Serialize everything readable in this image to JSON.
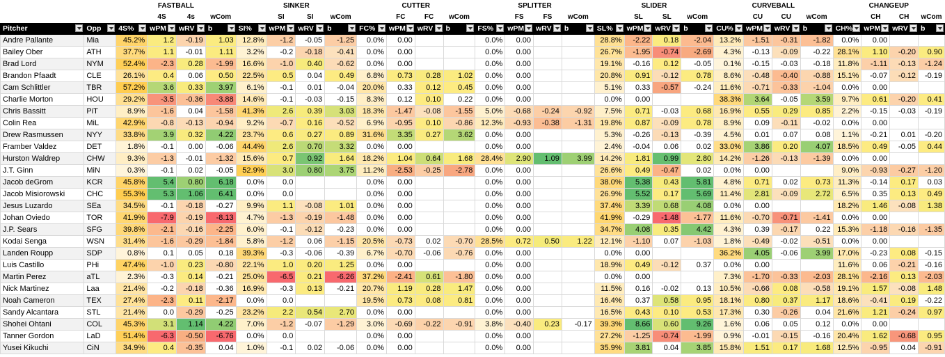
{
  "groups": [
    "FASTBALL",
    "SINKER",
    "CUTTER",
    "SPLITTER",
    "SLIDER",
    "CURVEBALL",
    "CHANGEUP"
  ],
  "subheaders": [
    [
      "4S",
      "4s",
      "wCom"
    ],
    [
      "SI",
      "SI",
      "wCom"
    ],
    [
      "FC",
      "FC",
      "wCom"
    ],
    [
      "FS",
      "FS",
      "wCom"
    ],
    [
      "SL",
      "SL",
      "wCom"
    ],
    [
      "CU",
      "CU",
      "wCom"
    ],
    [
      "CH",
      "CH",
      "wCom"
    ]
  ],
  "headers": [
    "Pitcher",
    "Opp",
    "4S%",
    "wPM",
    "wRV",
    "b",
    "SI%",
    "wPM",
    "wRV",
    "b",
    "FC%",
    "wPM",
    "wRV",
    "b",
    "FS%",
    "wPM",
    "wRV",
    "b",
    "SL%",
    "wPM",
    "wRV",
    "b",
    "CU%",
    "wPM",
    "wRV",
    "b",
    "CH%",
    "wPM",
    "wRV",
    "b"
  ],
  "rows": [
    [
      "Andre Pallante",
      "Mia",
      "45.2%",
      "1.2",
      "-0.19",
      "1.03",
      "12.8%",
      "-1.2",
      "-0.05",
      "-1.25",
      "0.0%",
      "0.00",
      "",
      "",
      "0.0%",
      "0.00",
      "",
      "",
      "28.8%",
      "-2.22",
      "0.18",
      "-2.04",
      "13.2%",
      "-1.51",
      "-0.31",
      "-1.82",
      "0.0%",
      "0.00",
      "",
      ""
    ],
    [
      "Bailey Ober",
      "ATH",
      "37.7%",
      "1.1",
      "-0.01",
      "1.11",
      "3.2%",
      "-0.2",
      "-0.18",
      "-0.41",
      "0.0%",
      "0.00",
      "",
      "",
      "0.0%",
      "0.00",
      "",
      "",
      "26.7%",
      "-1.95",
      "-0.74",
      "-2.69",
      "4.3%",
      "-0.13",
      "-0.09",
      "-0.22",
      "28.1%",
      "1.10",
      "-0.20",
      "0.90"
    ],
    [
      "Brad Lord",
      "NYM",
      "52.4%",
      "-2.3",
      "0.28",
      "-1.99",
      "16.6%",
      "-1.0",
      "0.40",
      "-0.62",
      "0.0%",
      "0.00",
      "",
      "",
      "0.0%",
      "0.00",
      "",
      "",
      "19.1%",
      "-0.16",
      "0.12",
      "-0.05",
      "0.1%",
      "-0.15",
      "-0.03",
      "-0.18",
      "11.8%",
      "-1.11",
      "-0.13",
      "-1.24"
    ],
    [
      "Brandon Pfaadt",
      "CLE",
      "26.1%",
      "0.4",
      "0.06",
      "0.50",
      "22.5%",
      "0.5",
      "0.04",
      "0.49",
      "6.8%",
      "0.73",
      "0.28",
      "1.02",
      "0.0%",
      "0.00",
      "",
      "",
      "20.8%",
      "0.91",
      "-0.12",
      "0.78",
      "8.6%",
      "-0.48",
      "-0.40",
      "-0.88",
      "15.1%",
      "-0.07",
      "-0.12",
      "-0.19"
    ],
    [
      "Cam Schlittler",
      "TBR",
      "57.2%",
      "3.6",
      "0.33",
      "3.97",
      "6.1%",
      "-0.1",
      "0.01",
      "-0.04",
      "20.0%",
      "0.33",
      "0.12",
      "0.45",
      "0.0%",
      "0.00",
      "",
      "",
      "5.1%",
      "0.33",
      "-0.57",
      "-0.24",
      "11.6%",
      "-0.71",
      "-0.33",
      "-1.04",
      "0.0%",
      "0.00",
      "",
      ""
    ],
    [
      "Charlie Morton",
      "HOU",
      "29.2%",
      "-3.5",
      "-0.36",
      "-3.88",
      "14.6%",
      "-0.1",
      "-0.03",
      "-0.15",
      "8.3%",
      "0.12",
      "0.10",
      "0.22",
      "0.0%",
      "0.00",
      "",
      "",
      "0.0%",
      "0.00",
      "",
      "",
      "38.3%",
      "3.64",
      "-0.05",
      "3.59",
      "9.7%",
      "0.61",
      "-0.20",
      "0.41"
    ],
    [
      "Chris Bassitt",
      "PiT",
      "8.9%",
      "-1.6",
      "0.04",
      "-1.58",
      "41.3%",
      "2.6",
      "0.39",
      "3.03",
      "18.3%",
      "-1.47",
      "-0.08",
      "-1.55",
      "5.0%",
      "-0.68",
      "-0.24",
      "-0.92",
      "7.5%",
      "0.71",
      "-0.03",
      "0.68",
      "16.9%",
      "0.55",
      "0.29",
      "0.85",
      "2.2%",
      "-0.15",
      "-0.03",
      "-0.19"
    ],
    [
      "Colin Rea",
      "MiL",
      "42.9%",
      "-0.8",
      "-0.13",
      "-0.94",
      "9.2%",
      "-0.7",
      "0.16",
      "-0.52",
      "6.9%",
      "-0.95",
      "0.10",
      "-0.86",
      "12.3%",
      "-0.93",
      "-0.38",
      "-1.31",
      "19.8%",
      "0.87",
      "-0.09",
      "0.78",
      "8.9%",
      "0.09",
      "-0.11",
      "-0.02",
      "0.0%",
      "0.00",
      "",
      ""
    ],
    [
      "Drew Rasmussen",
      "NYY",
      "33.8%",
      "3.9",
      "0.32",
      "4.22",
      "23.7%",
      "0.6",
      "0.27",
      "0.89",
      "31.6%",
      "3.35",
      "0.27",
      "3.62",
      "0.0%",
      "0.00",
      "",
      "",
      "5.3%",
      "-0.26",
      "-0.13",
      "-0.39",
      "4.5%",
      "0.01",
      "0.07",
      "0.08",
      "1.1%",
      "-0.21",
      "0.01",
      "-0.20"
    ],
    [
      "Framber Valdez",
      "DET",
      "1.8%",
      "-0.1",
      "0.00",
      "-0.06",
      "44.4%",
      "2.6",
      "0.70",
      "3.32",
      "0.0%",
      "0.00",
      "",
      "",
      "0.0%",
      "0.00",
      "",
      "",
      "2.4%",
      "-0.04",
      "0.06",
      "0.02",
      "33.0%",
      "3.86",
      "0.20",
      "4.07",
      "18.5%",
      "0.49",
      "-0.05",
      "0.44"
    ],
    [
      "Hurston Waldrep",
      "CHW",
      "9.3%",
      "-1.3",
      "-0.01",
      "-1.32",
      "15.6%",
      "0.7",
      "0.92",
      "1.64",
      "18.2%",
      "1.04",
      "0.64",
      "1.68",
      "28.4%",
      "2.90",
      "1.09",
      "3.99",
      "14.2%",
      "1.81",
      "0.99",
      "2.80",
      "14.2%",
      "-1.26",
      "-0.13",
      "-1.39",
      "0.0%",
      "0.00",
      "",
      ""
    ],
    [
      "J.T. Ginn",
      "MiN",
      "0.3%",
      "-0.1",
      "0.02",
      "-0.05",
      "52.9%",
      "3.0",
      "0.80",
      "3.75",
      "11.2%",
      "-2.53",
      "-0.25",
      "-2.78",
      "0.0%",
      "0.00",
      "",
      "",
      "26.6%",
      "0.49",
      "-0.47",
      "0.02",
      "0.0%",
      "0.00",
      "",
      "",
      "9.0%",
      "-0.93",
      "-0.27",
      "-1.20"
    ],
    [
      "Jacob deGrom",
      "KCR",
      "45.8%",
      "5.4",
      "0.80",
      "6.18",
      "0.0%",
      "0.0",
      "",
      "",
      "0.0%",
      "0.00",
      "",
      "",
      "0.0%",
      "0.00",
      "",
      "",
      "38.0%",
      "5.38",
      "0.43",
      "5.81",
      "4.8%",
      "0.71",
      "0.02",
      "0.73",
      "11.3%",
      "-0.14",
      "0.17",
      "0.03"
    ],
    [
      "Jacob Misiorowski",
      "CHC",
      "55.3%",
      "5.3",
      "1.06",
      "6.41",
      "0.0%",
      "0.0",
      "",
      "",
      "0.0%",
      "0.00",
      "",
      "",
      "0.0%",
      "0.00",
      "",
      "",
      "26.9%",
      "5.52",
      "0.17",
      "5.69",
      "11.4%",
      "2.81",
      "-0.09",
      "2.72",
      "6.5%",
      "0.35",
      "0.13",
      "0.49"
    ],
    [
      "Jesus Luzardo",
      "SEa",
      "34.5%",
      "-0.1",
      "-0.18",
      "-0.27",
      "9.9%",
      "1.1",
      "-0.08",
      "1.01",
      "0.0%",
      "0.00",
      "",
      "",
      "0.0%",
      "0.00",
      "",
      "",
      "37.4%",
      "3.39",
      "0.68",
      "4.08",
      "0.0%",
      "0.00",
      "",
      "",
      "18.2%",
      "1.46",
      "-0.08",
      "1.38"
    ],
    [
      "Johan Oviedo",
      "TOR",
      "41.9%",
      "-7.9",
      "-0.19",
      "-8.13",
      "4.7%",
      "-1.3",
      "-0.19",
      "-1.48",
      "0.0%",
      "0.00",
      "",
      "",
      "0.0%",
      "0.00",
      "",
      "",
      "41.9%",
      "-0.29",
      "-1.48",
      "-1.77",
      "11.6%",
      "-0.70",
      "-0.71",
      "-1.41",
      "0.0%",
      "0.00",
      "",
      ""
    ],
    [
      "J.P. Sears",
      "SFG",
      "39.8%",
      "-2.1",
      "-0.16",
      "-2.25",
      "6.0%",
      "-0.1",
      "-0.12",
      "-0.23",
      "0.0%",
      "0.00",
      "",
      "",
      "0.0%",
      "0.00",
      "",
      "",
      "34.7%",
      "4.08",
      "0.35",
      "4.42",
      "4.3%",
      "0.39",
      "-0.17",
      "0.22",
      "15.3%",
      "-1.18",
      "-0.16",
      "-1.35"
    ],
    [
      "Kodai Senga",
      "WSN",
      "31.4%",
      "-1.6",
      "-0.29",
      "-1.84",
      "5.8%",
      "-1.2",
      "0.06",
      "-1.15",
      "20.5%",
      "-0.73",
      "0.02",
      "-0.70",
      "28.5%",
      "0.72",
      "0.50",
      "1.22",
      "12.1%",
      "-1.10",
      "0.07",
      "-1.03",
      "1.8%",
      "-0.49",
      "-0.02",
      "-0.51",
      "0.0%",
      "0.00",
      "",
      ""
    ],
    [
      "Landen Roupp",
      "SDP",
      "0.8%",
      "0.1",
      "0.05",
      "0.18",
      "39.3%",
      "-0.3",
      "-0.06",
      "-0.39",
      "6.7%",
      "-0.70",
      "-0.06",
      "-0.76",
      "0.0%",
      "0.00",
      "",
      "",
      "0.0%",
      "0.00",
      "",
      "",
      "36.2%",
      "4.05",
      "-0.06",
      "3.99",
      "17.0%",
      "-0.23",
      "0.08",
      "-0.15"
    ],
    [
      "Luis Castillo",
      "PHi",
      "47.4%",
      "-1.0",
      "0.23",
      "-0.80",
      "22.1%",
      "1.0",
      "0.20",
      "1.25",
      "0.0%",
      "0.00",
      "",
      "",
      "0.0%",
      "0.00",
      "",
      "",
      "18.9%",
      "0.49",
      "-0.12",
      "0.37",
      "0.0%",
      "0.00",
      "",
      "",
      "11.6%",
      "0.06",
      "-0.21",
      "-0.16"
    ],
    [
      "Martin Perez",
      "aTL",
      "2.3%",
      "-0.3",
      "0.14",
      "-0.21",
      "25.0%",
      "-6.5",
      "0.21",
      "-6.26",
      "37.2%",
      "-2.41",
      "0.61",
      "-1.80",
      "0.0%",
      "0.00",
      "",
      "",
      "0.0%",
      "0.00",
      "",
      "",
      "7.3%",
      "-1.70",
      "-0.33",
      "-2.03",
      "28.1%",
      "-2.16",
      "0.13",
      "-2.03"
    ],
    [
      "Nick Martinez",
      "Laa",
      "21.4%",
      "-0.2",
      "-0.18",
      "-0.36",
      "16.9%",
      "-0.3",
      "0.13",
      "-0.21",
      "20.7%",
      "1.19",
      "0.28",
      "1.47",
      "0.0%",
      "0.00",
      "",
      "",
      "11.5%",
      "0.16",
      "-0.02",
      "0.13",
      "10.5%",
      "-0.66",
      "0.08",
      "-0.58",
      "19.1%",
      "1.57",
      "-0.08",
      "1.48"
    ],
    [
      "Noah Cameron",
      "TEX",
      "27.4%",
      "-2.3",
      "0.11",
      "-2.17",
      "0.0%",
      "0.0",
      "",
      "",
      "19.5%",
      "0.73",
      "0.08",
      "0.81",
      "0.0%",
      "0.00",
      "",
      "",
      "16.4%",
      "0.37",
      "0.58",
      "0.95",
      "18.1%",
      "0.80",
      "0.37",
      "1.17",
      "18.6%",
      "-0.41",
      "0.19",
      "-0.22"
    ],
    [
      "Sandy Alcantara",
      "STL",
      "21.4%",
      "0.0",
      "-0.29",
      "-0.25",
      "23.2%",
      "2.2",
      "0.54",
      "2.70",
      "0.0%",
      "0.00",
      "",
      "",
      "0.0%",
      "0.00",
      "",
      "",
      "16.5%",
      "0.43",
      "0.10",
      "0.53",
      "17.3%",
      "0.30",
      "-0.26",
      "0.04",
      "21.6%",
      "1.21",
      "-0.24",
      "0.97"
    ],
    [
      "Shohei Ohtani",
      "COL",
      "45.3%",
      "3.1",
      "1.14",
      "4.22",
      "7.0%",
      "-1.2",
      "-0.07",
      "-1.29",
      "3.0%",
      "-0.69",
      "-0.22",
      "-0.91",
      "3.8%",
      "-0.40",
      "0.23",
      "-0.17",
      "39.3%",
      "8.66",
      "0.60",
      "9.26",
      "1.6%",
      "0.06",
      "0.05",
      "0.12",
      "0.0%",
      "0.00",
      "",
      ""
    ],
    [
      "Tanner Gordon",
      "LaD",
      "51.4%",
      "-6.3",
      "-0.50",
      "-6.76",
      "0.0%",
      "0.0",
      "",
      "",
      "0.0%",
      "0.00",
      "",
      "",
      "0.0%",
      "0.00",
      "",
      "",
      "27.2%",
      "-1.25",
      "-0.74",
      "-1.99",
      "0.9%",
      "-0.01",
      "-0.15",
      "-0.16",
      "20.4%",
      "1.62",
      "-0.68",
      "0.95"
    ],
    [
      "Yusei Kikuchi",
      "CiN",
      "34.9%",
      "0.4",
      "-0.35",
      "0.04",
      "1.0%",
      "-0.1",
      "0.02",
      "-0.06",
      "0.0%",
      "0.00",
      "",
      "",
      "0.0%",
      "0.00",
      "",
      "",
      "35.9%",
      "3.81",
      "0.04",
      "3.85",
      "15.8%",
      "1.51",
      "0.17",
      "1.68",
      "12.5%",
      "-0.95",
      "0.04",
      "-0.91"
    ]
  ]
}
